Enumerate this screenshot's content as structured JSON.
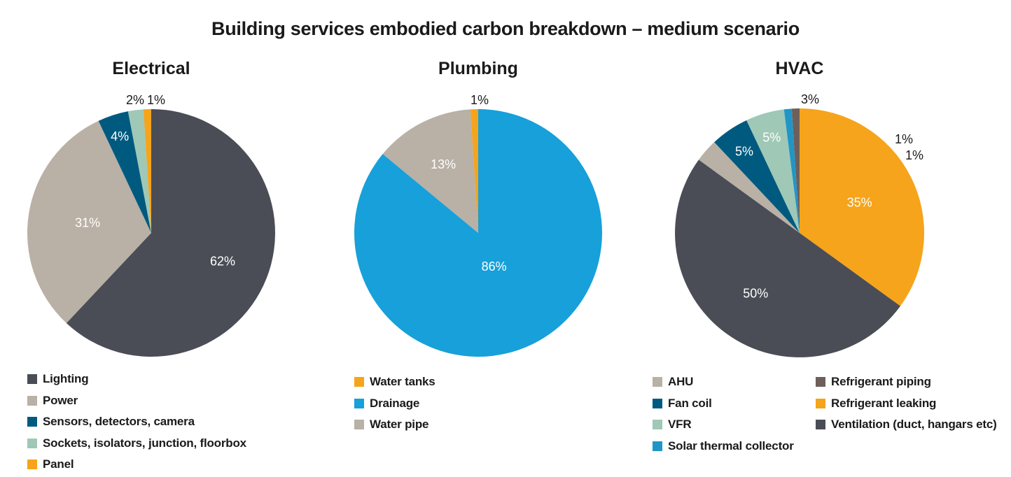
{
  "title": "Building services embodied carbon breakdown – medium scenario",
  "chart_data": [
    {
      "type": "pie",
      "title": "Electrical",
      "slices": [
        {
          "name": "Lighting",
          "value": 62,
          "label": "62%",
          "color": "#4a4d55"
        },
        {
          "name": "Power",
          "value": 31,
          "label": "31%",
          "color": "#b9b0a6"
        },
        {
          "name": "Sensors, detectors, camera",
          "value": 4,
          "label": "4%",
          "color": "#005a7f"
        },
        {
          "name": "Sockets, isolators, junction, floorbox",
          "value": 2,
          "label": "2%",
          "color": "#9fc8b6"
        },
        {
          "name": "Panel",
          "value": 1,
          "label": "1%",
          "color": "#f5a41c"
        }
      ]
    },
    {
      "type": "pie",
      "title": "Plumbing",
      "slices": [
        {
          "name": "Drainage",
          "value": 86,
          "label": "86%",
          "color": "#17a0d9"
        },
        {
          "name": "Water pipe",
          "value": 13,
          "label": "13%",
          "color": "#b9b0a6"
        },
        {
          "name": "Water tanks",
          "value": 1,
          "label": "1%",
          "color": "#f5a41c"
        }
      ],
      "legend_order": [
        "Water tanks",
        "Drainage",
        "Water pipe"
      ]
    },
    {
      "type": "pie",
      "title": "HVAC",
      "slices": [
        {
          "name": "Refrigerant leaking",
          "value": 35,
          "label": "35%",
          "color": "#f5a41c"
        },
        {
          "name": "Ventilation (duct, hangars etc)",
          "value": 50,
          "label": "50%",
          "color": "#4a4d55"
        },
        {
          "name": "AHU",
          "value": 3,
          "label": "3%",
          "color": "#b9b0a6"
        },
        {
          "name": "Fan coil",
          "value": 5,
          "label": "5%",
          "color": "#005a7f"
        },
        {
          "name": "VFR",
          "value": 5,
          "label": "5%",
          "color": "#9fc8b6"
        },
        {
          "name": "Solar thermal collector",
          "value": 1,
          "label": "1%",
          "color": "#2196c6"
        },
        {
          "name": "Refrigerant piping",
          "value": 1,
          "label": "1%",
          "color": "#6e5f5b"
        }
      ],
      "legend_col1": [
        "AHU",
        "Fan coil",
        "VFR",
        "Solar thermal collector"
      ],
      "legend_col2": [
        "Refrigerant piping",
        "Refrigerant leaking",
        "Ventilation (duct, hangars etc)"
      ]
    }
  ]
}
